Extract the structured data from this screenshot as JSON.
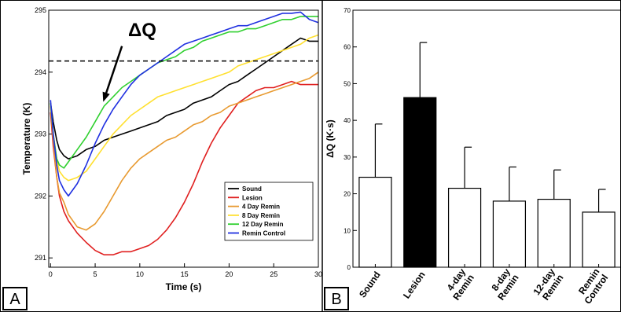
{
  "panels": {
    "a": {
      "label": "A"
    },
    "b": {
      "label": "B"
    }
  },
  "chart_data": [
    {
      "type": "line",
      "title": "",
      "xlabel": "Time (s)",
      "ylabel": "Temperature (K)",
      "xlim": [
        -0.2,
        30
      ],
      "ylim": [
        290.85,
        295
      ],
      "xticks": [
        0,
        5,
        10,
        15,
        20,
        25,
        30
      ],
      "yticks": [
        291,
        292,
        293,
        294,
        295
      ],
      "grid": false,
      "legend": "bottom-right",
      "annotation": {
        "text": "ΔQ",
        "reference_y": 294.18,
        "reference_style": "dashed",
        "arrow_from": [
          8.0,
          294.42
        ],
        "arrow_to": [
          5.9,
          293.52
        ]
      },
      "series": [
        {
          "name": "Sound",
          "color": "#000000",
          "x": [
            0,
            0.3,
            0.7,
            1,
            1.5,
            2,
            3,
            4,
            5,
            6,
            7,
            8,
            9,
            10,
            11,
            12,
            13,
            14,
            15,
            16,
            17,
            18,
            19,
            20,
            21,
            22,
            23,
            24,
            25,
            26,
            27,
            28,
            29,
            30
          ],
          "y": [
            293.5,
            293.2,
            292.9,
            292.75,
            292.65,
            292.6,
            292.65,
            292.75,
            292.8,
            292.9,
            292.95,
            293.0,
            293.05,
            293.1,
            293.15,
            293.2,
            293.3,
            293.35,
            293.4,
            293.5,
            293.55,
            293.6,
            293.7,
            293.8,
            293.85,
            293.95,
            294.05,
            294.15,
            294.25,
            294.35,
            294.45,
            294.55,
            294.5,
            294.5
          ]
        },
        {
          "name": "Lesion",
          "color": "#e02020",
          "x": [
            0,
            0.3,
            0.7,
            1,
            1.5,
            2,
            3,
            4,
            5,
            6,
            7,
            8,
            9,
            10,
            11,
            12,
            13,
            14,
            15,
            16,
            17,
            18,
            19,
            20,
            21,
            22,
            23,
            24,
            25,
            26,
            27,
            28,
            29,
            30
          ],
          "y": [
            293.35,
            292.8,
            292.3,
            292.0,
            291.75,
            291.6,
            291.4,
            291.25,
            291.12,
            291.05,
            291.05,
            291.1,
            291.1,
            291.15,
            291.2,
            291.3,
            291.45,
            291.65,
            291.9,
            292.2,
            292.55,
            292.85,
            293.1,
            293.3,
            293.5,
            293.6,
            293.7,
            293.75,
            293.75,
            293.8,
            293.85,
            293.8,
            293.8,
            293.8
          ]
        },
        {
          "name": "4 Day Remin",
          "color": "#e89a30",
          "x": [
            0,
            0.3,
            0.7,
            1,
            1.5,
            2,
            3,
            4,
            5,
            6,
            7,
            8,
            9,
            10,
            11,
            12,
            13,
            14,
            15,
            16,
            17,
            18,
            19,
            20,
            21,
            22,
            23,
            24,
            25,
            26,
            27,
            28,
            29,
            30
          ],
          "y": [
            293.45,
            292.9,
            292.3,
            292.05,
            291.9,
            291.7,
            291.5,
            291.45,
            291.55,
            291.75,
            292.0,
            292.25,
            292.45,
            292.6,
            292.7,
            292.8,
            292.9,
            292.95,
            293.05,
            293.15,
            293.2,
            293.3,
            293.35,
            293.45,
            293.5,
            293.55,
            293.6,
            293.65,
            293.7,
            293.75,
            293.8,
            293.85,
            293.9,
            294.0
          ]
        },
        {
          "name": "8 Day Remin",
          "color": "#ffe030",
          "x": [
            0,
            0.3,
            0.7,
            1,
            1.5,
            2,
            3,
            4,
            5,
            6,
            7,
            8,
            9,
            10,
            11,
            12,
            13,
            14,
            15,
            16,
            17,
            18,
            19,
            20,
            21,
            22,
            23,
            24,
            25,
            26,
            27,
            28,
            29,
            30
          ],
          "y": [
            293.5,
            293.0,
            292.6,
            292.4,
            292.3,
            292.25,
            292.3,
            292.4,
            292.6,
            292.8,
            293.0,
            293.15,
            293.3,
            293.4,
            293.5,
            293.6,
            293.65,
            293.7,
            293.75,
            293.8,
            293.85,
            293.9,
            293.95,
            294.0,
            294.1,
            294.15,
            294.2,
            294.25,
            294.3,
            294.35,
            294.4,
            294.45,
            294.55,
            294.6
          ]
        },
        {
          "name": "12 Day Remin",
          "color": "#30d030",
          "x": [
            0,
            0.3,
            0.7,
            1,
            1.5,
            2,
            3,
            4,
            5,
            6,
            7,
            8,
            9,
            10,
            11,
            12,
            13,
            14,
            15,
            16,
            17,
            18,
            19,
            20,
            21,
            22,
            23,
            24,
            25,
            26,
            27,
            28,
            29,
            30
          ],
          "y": [
            293.5,
            293.0,
            292.6,
            292.5,
            292.45,
            292.55,
            292.75,
            292.95,
            293.2,
            293.45,
            293.6,
            293.75,
            293.85,
            293.95,
            294.05,
            294.15,
            294.2,
            294.25,
            294.35,
            294.4,
            294.5,
            294.55,
            294.6,
            294.65,
            294.65,
            294.7,
            294.7,
            294.75,
            294.8,
            294.85,
            294.85,
            294.9,
            294.9,
            294.9
          ]
        },
        {
          "name": "Remin Control",
          "color": "#2030e0",
          "x": [
            0,
            0.3,
            0.7,
            1,
            1.5,
            2,
            3,
            4,
            5,
            6,
            7,
            8,
            9,
            10,
            11,
            12,
            13,
            14,
            15,
            16,
            17,
            18,
            19,
            20,
            21,
            22,
            23,
            24,
            25,
            26,
            27,
            28,
            29,
            30
          ],
          "y": [
            293.55,
            293.0,
            292.5,
            292.25,
            292.1,
            292.0,
            292.2,
            292.5,
            292.85,
            293.15,
            293.4,
            293.6,
            293.8,
            293.95,
            294.05,
            294.15,
            294.25,
            294.35,
            294.45,
            294.5,
            294.55,
            294.6,
            294.65,
            294.7,
            294.75,
            294.75,
            294.8,
            294.85,
            294.9,
            294.95,
            294.95,
            294.97,
            294.85,
            294.8
          ]
        }
      ]
    },
    {
      "type": "bar",
      "title": "",
      "xlabel": "",
      "ylabel": "ΔQ (K·s)",
      "ylim": [
        0,
        70
      ],
      "yticks": [
        0,
        10,
        20,
        30,
        40,
        50,
        60,
        70
      ],
      "grid": false,
      "categories": [
        "Sound",
        "Lesion",
        "4-day Remin",
        "8-day Remin",
        "12-day Remin",
        "Remin Control"
      ],
      "category_lines": [
        [
          "Sound"
        ],
        [
          "Lesion"
        ],
        [
          "4-day",
          "Remin"
        ],
        [
          "8-day",
          "Remin"
        ],
        [
          "12-day",
          "Remin"
        ],
        [
          "Remin",
          "Control"
        ]
      ],
      "values": [
        24.5,
        46.2,
        21.5,
        18.0,
        18.5,
        15.0
      ],
      "errors": [
        14.5,
        15.0,
        11.2,
        9.3,
        8.0,
        6.2
      ],
      "fill_colors": [
        "#ffffff",
        "#000000",
        "#ffffff",
        "#ffffff",
        "#ffffff",
        "#ffffff"
      ]
    }
  ]
}
